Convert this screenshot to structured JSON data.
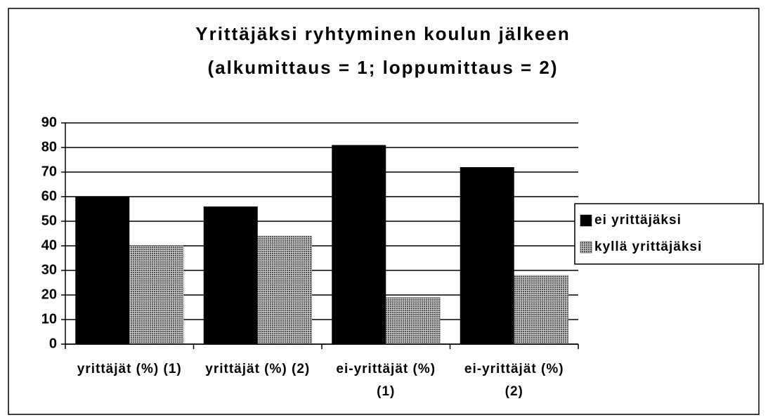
{
  "chart_data": {
    "type": "bar",
    "title": "Yrittäjäksi ryhtyminen koulun jälkeen",
    "subtitle": "(alkumittaus = 1; loppumittaus = 2)",
    "categories": [
      "yrittäjät (%) (1)",
      "yrittäjät (%) (2)",
      "ei-yrittäjät (%) (1)",
      "ei-yrittäjät (%) (2)"
    ],
    "series": [
      {
        "name": "ei yrittäjäksi",
        "color": "#000000",
        "values": [
          60,
          56,
          81,
          72
        ]
      },
      {
        "name": "kyllä yrittäjäksi",
        "color": "#7a7a7a",
        "values": [
          40,
          44,
          19,
          28
        ]
      }
    ],
    "ylim": [
      0,
      90
    ],
    "yticks": [
      0,
      10,
      20,
      30,
      40,
      50,
      60,
      70,
      80,
      90
    ],
    "grid": true,
    "legend": "right"
  }
}
